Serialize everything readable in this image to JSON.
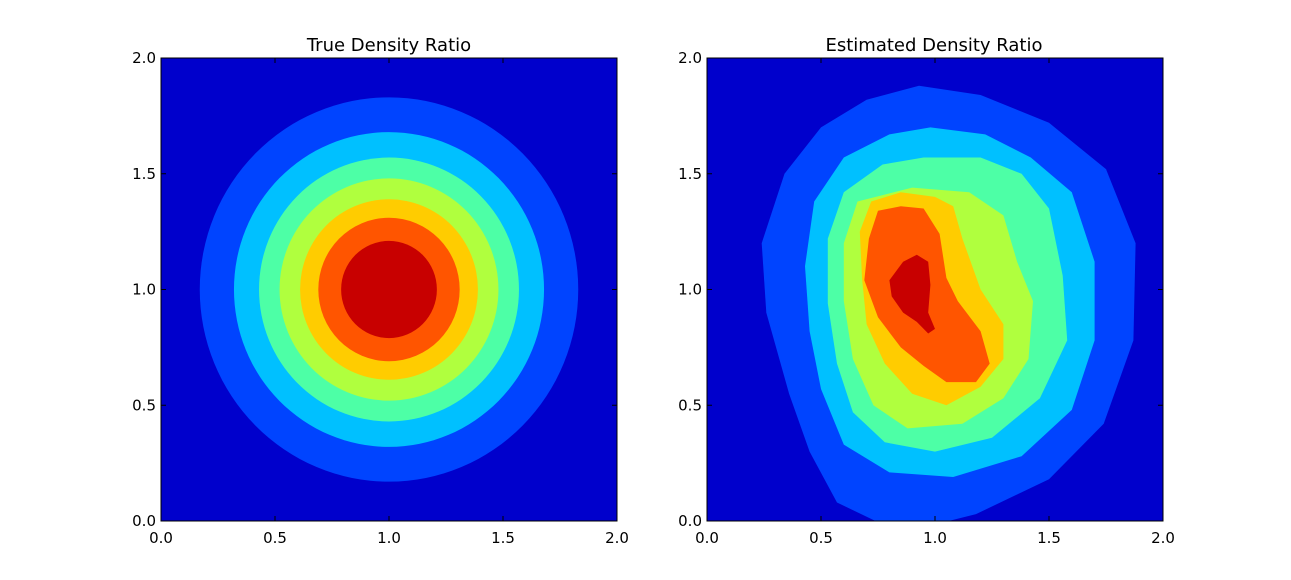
{
  "colors": {
    "levels": [
      "#0000cc",
      "#0044ff",
      "#00c0ff",
      "#4dffa6",
      "#b0ff3e",
      "#ffcc00",
      "#ff5500",
      "#c80000"
    ]
  },
  "chart_data": [
    {
      "type": "contour",
      "title": "True Density Ratio",
      "xlabel": "",
      "ylabel": "",
      "xlim": [
        0.0,
        2.0
      ],
      "ylim": [
        0.0,
        2.0
      ],
      "xticks": [
        "0.0",
        "0.5",
        "1.0",
        "1.5",
        "2.0"
      ],
      "yticks": [
        "0.0",
        "0.5",
        "1.0",
        "1.5",
        "2.0"
      ],
      "grid": false,
      "legend": "none",
      "contours": [
        {
          "level": 1,
          "shape": "circle",
          "cx": 1.0,
          "cy": 1.0,
          "r": 0.83
        },
        {
          "level": 2,
          "shape": "circle",
          "cx": 1.0,
          "cy": 1.0,
          "r": 0.68
        },
        {
          "level": 3,
          "shape": "circle",
          "cx": 1.0,
          "cy": 1.0,
          "r": 0.57
        },
        {
          "level": 4,
          "shape": "circle",
          "cx": 1.0,
          "cy": 1.0,
          "r": 0.48
        },
        {
          "level": 5,
          "shape": "circle",
          "cx": 1.0,
          "cy": 1.0,
          "r": 0.39
        },
        {
          "level": 6,
          "shape": "circle",
          "cx": 1.0,
          "cy": 1.0,
          "r": 0.31
        },
        {
          "level": 7,
          "shape": "circle",
          "cx": 1.0,
          "cy": 1.0,
          "r": 0.21
        }
      ]
    },
    {
      "type": "contour",
      "title": "Estimated Density Ratio",
      "xlabel": "",
      "ylabel": "",
      "xlim": [
        0.0,
        2.0
      ],
      "ylim": [
        0.0,
        2.0
      ],
      "xticks": [
        "0.0",
        "0.5",
        "1.0",
        "1.5",
        "2.0"
      ],
      "yticks": [
        "0.0",
        "0.5",
        "1.0",
        "1.5",
        "2.0"
      ],
      "grid": false,
      "legend": "none",
      "contours": [
        {
          "level": 1,
          "shape": "polygon",
          "points": [
            [
              0.93,
              1.88
            ],
            [
              1.2,
              1.84
            ],
            [
              1.5,
              1.72
            ],
            [
              1.75,
              1.52
            ],
            [
              1.88,
              1.2
            ],
            [
              1.87,
              0.78
            ],
            [
              1.74,
              0.42
            ],
            [
              1.5,
              0.18
            ],
            [
              1.18,
              0.03
            ],
            [
              0.98,
              -0.02
            ],
            [
              0.76,
              -0.01
            ],
            [
              0.57,
              0.08
            ],
            [
              0.45,
              0.3
            ],
            [
              0.36,
              0.55
            ],
            [
              0.26,
              0.9
            ],
            [
              0.24,
              1.2
            ],
            [
              0.34,
              1.5
            ],
            [
              0.5,
              1.7
            ],
            [
              0.7,
              1.82
            ]
          ]
        },
        {
          "level": 2,
          "shape": "polygon",
          "points": [
            [
              0.98,
              1.7
            ],
            [
              1.22,
              1.67
            ],
            [
              1.42,
              1.57
            ],
            [
              1.6,
              1.42
            ],
            [
              1.7,
              1.12
            ],
            [
              1.7,
              0.78
            ],
            [
              1.6,
              0.48
            ],
            [
              1.38,
              0.28
            ],
            [
              1.08,
              0.19
            ],
            [
              0.8,
              0.21
            ],
            [
              0.6,
              0.33
            ],
            [
              0.5,
              0.57
            ],
            [
              0.45,
              0.82
            ],
            [
              0.43,
              1.1
            ],
            [
              0.47,
              1.38
            ],
            [
              0.6,
              1.57
            ],
            [
              0.8,
              1.67
            ]
          ]
        },
        {
          "level": 3,
          "shape": "polygon",
          "points": [
            [
              0.95,
              1.57
            ],
            [
              1.2,
              1.57
            ],
            [
              1.38,
              1.5
            ],
            [
              1.5,
              1.35
            ],
            [
              1.56,
              1.06
            ],
            [
              1.58,
              0.78
            ],
            [
              1.46,
              0.53
            ],
            [
              1.25,
              0.36
            ],
            [
              1.0,
              0.3
            ],
            [
              0.78,
              0.34
            ],
            [
              0.64,
              0.47
            ],
            [
              0.57,
              0.68
            ],
            [
              0.53,
              0.94
            ],
            [
              0.53,
              1.22
            ],
            [
              0.6,
              1.42
            ],
            [
              0.77,
              1.54
            ]
          ]
        },
        {
          "level": 4,
          "shape": "polygon",
          "points": [
            [
              0.9,
              1.44
            ],
            [
              1.15,
              1.42
            ],
            [
              1.3,
              1.32
            ],
            [
              1.36,
              1.12
            ],
            [
              1.43,
              0.95
            ],
            [
              1.41,
              0.7
            ],
            [
              1.3,
              0.53
            ],
            [
              1.12,
              0.42
            ],
            [
              0.88,
              0.4
            ],
            [
              0.73,
              0.5
            ],
            [
              0.64,
              0.7
            ],
            [
              0.6,
              0.95
            ],
            [
              0.6,
              1.2
            ],
            [
              0.66,
              1.38
            ]
          ]
        },
        {
          "level": 5,
          "shape": "polygon",
          "points": [
            [
              0.85,
              1.42
            ],
            [
              1.0,
              1.4
            ],
            [
              1.08,
              1.36
            ],
            [
              1.12,
              1.22
            ],
            [
              1.2,
              1.0
            ],
            [
              1.3,
              0.85
            ],
            [
              1.3,
              0.7
            ],
            [
              1.2,
              0.58
            ],
            [
              1.05,
              0.5
            ],
            [
              0.9,
              0.55
            ],
            [
              0.78,
              0.68
            ],
            [
              0.7,
              0.85
            ],
            [
              0.68,
              1.05
            ],
            [
              0.67,
              1.25
            ],
            [
              0.72,
              1.38
            ]
          ]
        },
        {
          "level": 6,
          "shape": "polygon",
          "points": [
            [
              0.75,
              1.34
            ],
            [
              0.85,
              1.36
            ],
            [
              0.95,
              1.35
            ],
            [
              1.02,
              1.24
            ],
            [
              1.05,
              1.05
            ],
            [
              1.1,
              0.95
            ],
            [
              1.2,
              0.82
            ],
            [
              1.24,
              0.68
            ],
            [
              1.18,
              0.6
            ],
            [
              1.05,
              0.6
            ],
            [
              0.95,
              0.67
            ],
            [
              0.85,
              0.75
            ],
            [
              0.75,
              0.88
            ],
            [
              0.69,
              1.04
            ],
            [
              0.71,
              1.22
            ]
          ]
        },
        {
          "level": 7,
          "shape": "polygon",
          "points": [
            [
              0.86,
              1.12
            ],
            [
              0.92,
              1.15
            ],
            [
              0.97,
              1.12
            ],
            [
              0.98,
              1.02
            ],
            [
              0.97,
              0.9
            ],
            [
              1.0,
              0.83
            ],
            [
              0.97,
              0.81
            ],
            [
              0.92,
              0.86
            ],
            [
              0.86,
              0.9
            ],
            [
              0.81,
              0.97
            ],
            [
              0.8,
              1.04
            ]
          ]
        }
      ]
    }
  ]
}
